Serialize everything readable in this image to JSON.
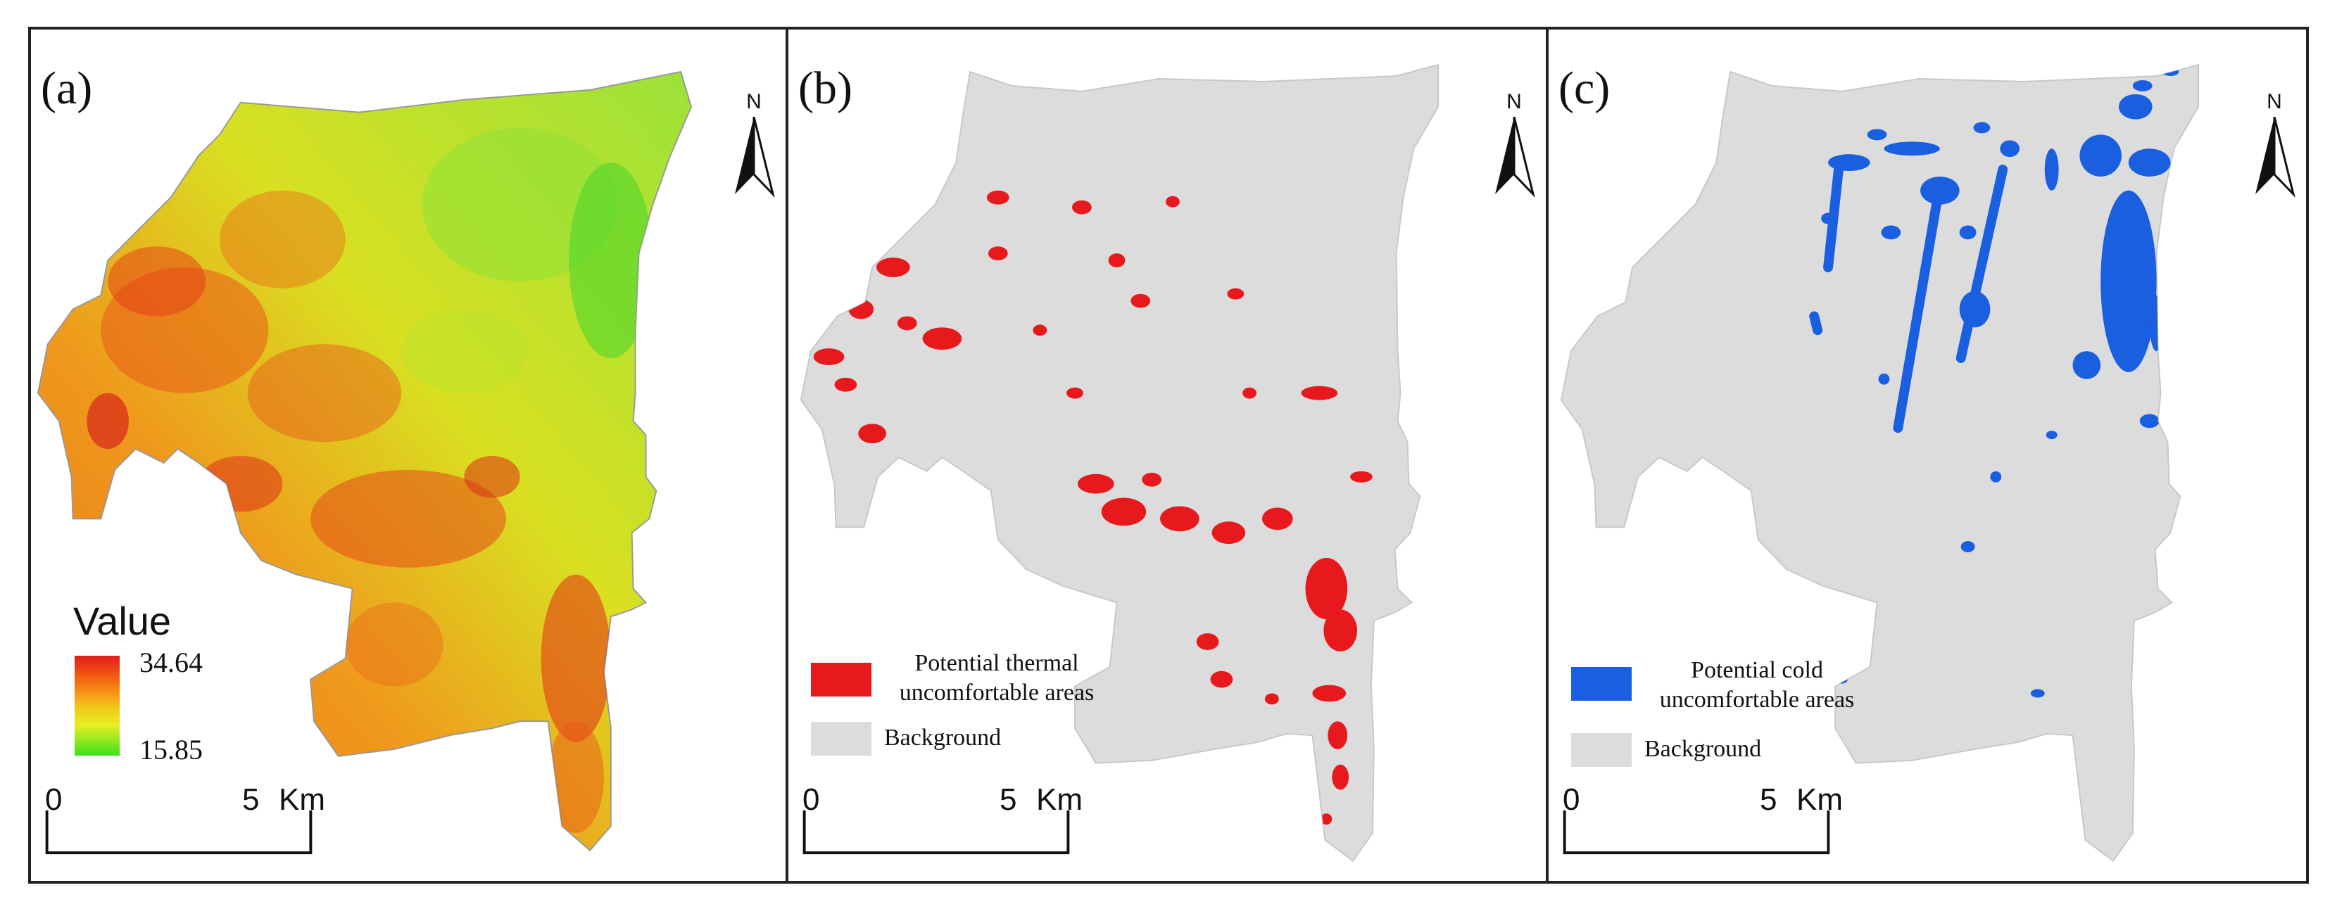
{
  "panels": {
    "a": {
      "label": "(a)",
      "legend": {
        "title": "Value",
        "max": "34.64",
        "min": "15.85",
        "ramp_colors": [
          "#e21c1c",
          "#f56a10",
          "#f2c21a",
          "#e7ef22",
          "#3ce01e"
        ]
      },
      "scale": {
        "zero": "0",
        "five": "5",
        "unit": "Km"
      },
      "north": "N"
    },
    "b": {
      "label": "(b)",
      "legend": {
        "items": [
          {
            "line1": "Potential thermal",
            "line2": "uncomfortable areas",
            "color": "#e8191c"
          },
          {
            "line1": "Background",
            "color": "#dcdcdc"
          }
        ]
      },
      "scale": {
        "zero": "0",
        "five": "5",
        "unit": "Km"
      },
      "north": "N"
    },
    "c": {
      "label": "(c)",
      "legend": {
        "items": [
          {
            "line1": "Potential cold",
            "line2": "uncomfortable areas",
            "color": "#1a5fe0"
          },
          {
            "line1": "Background",
            "color": "#dcdcdc"
          }
        ]
      },
      "scale": {
        "zero": "0",
        "five": "5",
        "unit": "Km"
      },
      "north": "N"
    }
  },
  "colors": {
    "background_region": "#dcdcdc",
    "hot": "#e8191c",
    "cold": "#1a5fe0",
    "frame": "#222222"
  }
}
